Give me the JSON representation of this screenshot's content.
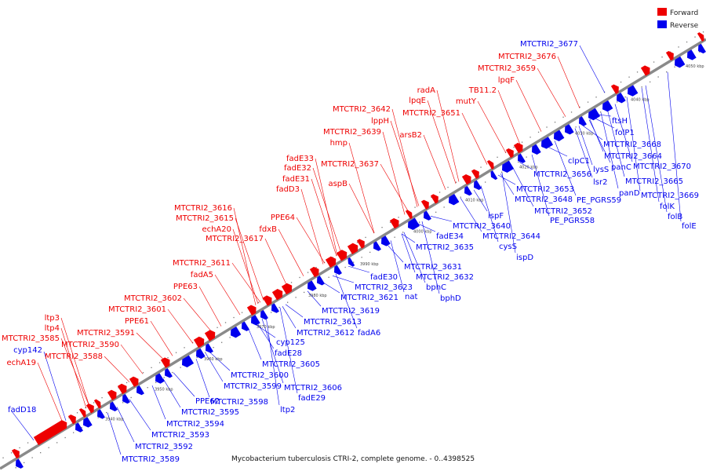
{
  "caption": "Mycobacterium tuberculosis CTRI-2, complete genome. - 0..4398525",
  "legend": [
    {
      "label": "Forward",
      "color": "#ee0000"
    },
    {
      "label": "Reverse",
      "color": "#0000ee"
    }
  ],
  "colors": {
    "forward": "#ee0000",
    "reverse": "#0000ee",
    "backbone": "#8a8a8a"
  },
  "kbp_ticks": [
    "3940 kbp",
    "3950 kbp",
    "3960 kbp",
    "3970 kbp",
    "3980 kbp",
    "3990 kbp",
    "4000 kbp",
    "4010 kbp",
    "4020 kbp",
    "4030 kbp",
    "4040 kbp",
    "4050 kbp"
  ],
  "forward_labels": [
    "fadD18",
    "echA19",
    "MTCTRI2_3585",
    "cyp142",
    "ltp4",
    "ltp3",
    "MTCTRI2_3590",
    "MTCTRI2_3588",
    "MTCTRI2_3591",
    "PPE61",
    "MTCTRI2_3601",
    "MTCTRI2_3602",
    "PPE63",
    "fadA5",
    "MTCTRI2_3611",
    "MTCTRI2_3617",
    "echA20",
    "MTCTRI2_3615",
    "MTCTRI2_3616",
    "fdxB",
    "PPE64",
    "fadD3",
    "fadE31",
    "fadE32",
    "fadE33",
    "aspB",
    "MTCTRI2_3637",
    "MTCTRI2_3639",
    "hmp",
    "lppH",
    "arsB2",
    "MTCTRI2_3642",
    "lpqE",
    "radA",
    "MTCTRI2_3651",
    "mutY",
    "TB11.2",
    "lpqF",
    "MTCTRI2_3659",
    "MTCTRI2_3676",
    "MTCTRI2_3677"
  ],
  "reverse_labels": [
    "MTCTRI2_3589",
    "MTCTRI2_3592",
    "MTCTRI2_3593",
    "MTCTRI2_3594",
    "MTCTRI2_3595",
    "PPE62",
    "MTCTRI2_3598",
    "MTCTRI2_3599",
    "MTCTRI2_3600",
    "ltp2",
    "fadE29",
    "MTCTRI2_3606",
    "MTCTRI2_3605",
    "fadE28",
    "cyp125",
    "MTCTRI2_3612",
    "MTCTRI2_3613",
    "fadA6",
    "MTCTRI2_3619",
    "MTCTRI2_3621",
    "MTCTRI2_3623",
    "nat",
    "bphD",
    "bphC",
    "MTCTRI2_3632",
    "MTCTRI2_3631",
    "fadE30",
    "MTCTRI2_3635",
    "fadE34",
    "MTCTRI2_3640",
    "ispF",
    "cysS",
    "MTCTRI2_3644",
    "ispD",
    "PE_PGRS58",
    "MTCTRI2_3652",
    "MTCTRI2_3648",
    "MTCTRI2_3653",
    "PE_PGRS59",
    "MTCTRI2_3656",
    "lsr2",
    "clpC1",
    "lysS",
    "panD",
    "panC",
    "MTCTRI2_3664",
    "MTCTRI2_3665",
    "MTCTRI2_3668",
    "MTCTRI2_3669",
    "folK",
    "folB",
    "folE",
    "MTCTRI2_3670",
    "folP1",
    "ftsH"
  ]
}
